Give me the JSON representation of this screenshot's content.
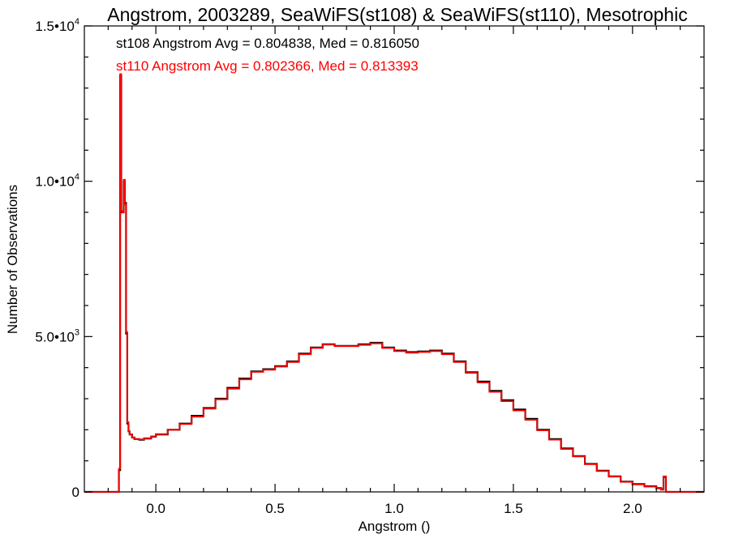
{
  "chart_data": {
    "type": "line",
    "title": "Angstrom, 2003289, SeaWiFS(st108) & SeaWiFS(st110), Mesotrophic",
    "xlabel": "Angstrom ()",
    "ylabel": "Number of Observations",
    "xlim": [
      -0.3,
      2.3
    ],
    "ylim": [
      0,
      15000
    ],
    "x_ticks": [
      {
        "value": 0.0,
        "label": "0.0"
      },
      {
        "value": 0.5,
        "label": "0.5"
      },
      {
        "value": 1.0,
        "label": "1.0"
      },
      {
        "value": 1.5,
        "label": "1.5"
      },
      {
        "value": 2.0,
        "label": "2.0"
      }
    ],
    "y_ticks": [
      {
        "value": 0,
        "label": "0",
        "exp": ""
      },
      {
        "value": 5000,
        "label": "5.0•10",
        "exp": "3"
      },
      {
        "value": 10000,
        "label": "1.0•10",
        "exp": "4"
      },
      {
        "value": 15000,
        "label": "1.5•10",
        "exp": "4"
      }
    ],
    "annotations": [
      {
        "text": "st108 Angstrom Avg = 0.804838, Med = 0.816050",
        "color": "#000000"
      },
      {
        "text": "st110 Angstrom Avg = 0.802366, Med = 0.813393",
        "color": "#ff0000"
      }
    ],
    "grid": false,
    "series": [
      {
        "color": "#000000",
        "x": [
          -0.3,
          -0.16,
          -0.155,
          -0.15,
          -0.145,
          -0.14,
          -0.135,
          -0.13,
          -0.125,
          -0.12,
          -0.115,
          -0.11,
          -0.1,
          -0.09,
          -0.07,
          -0.05,
          -0.02,
          0.0,
          0.05,
          0.1,
          0.15,
          0.2,
          0.25,
          0.3,
          0.35,
          0.4,
          0.45,
          0.5,
          0.55,
          0.6,
          0.65,
          0.7,
          0.75,
          0.8,
          0.85,
          0.9,
          0.95,
          1.0,
          1.05,
          1.1,
          1.15,
          1.2,
          1.25,
          1.3,
          1.35,
          1.4,
          1.45,
          1.5,
          1.55,
          1.6,
          1.65,
          1.7,
          1.75,
          1.8,
          1.85,
          1.9,
          1.95,
          2.0,
          2.05,
          2.1,
          2.12,
          2.13,
          2.14,
          2.16,
          2.3
        ],
        "y": [
          0,
          0,
          700,
          13400,
          9000,
          9000,
          10000,
          9300,
          5100,
          2200,
          1950,
          1850,
          1750,
          1700,
          1680,
          1720,
          1780,
          1850,
          2000,
          2200,
          2450,
          2700,
          3000,
          3350,
          3650,
          3880,
          3950,
          4050,
          4200,
          4450,
          4650,
          4750,
          4700,
          4700,
          4750,
          4800,
          4650,
          4550,
          4500,
          4520,
          4550,
          4450,
          4200,
          3850,
          3550,
          3250,
          2950,
          2650,
          2350,
          2000,
          1700,
          1400,
          1150,
          900,
          680,
          500,
          330,
          250,
          180,
          120,
          80,
          480,
          0,
          0,
          0
        ]
      },
      {
        "color": "#ff0000",
        "x": [
          -0.3,
          -0.16,
          -0.155,
          -0.15,
          -0.145,
          -0.14,
          -0.135,
          -0.13,
          -0.125,
          -0.12,
          -0.115,
          -0.11,
          -0.1,
          -0.09,
          -0.07,
          -0.05,
          -0.02,
          0.0,
          0.05,
          0.1,
          0.15,
          0.2,
          0.25,
          0.3,
          0.35,
          0.4,
          0.45,
          0.5,
          0.55,
          0.6,
          0.65,
          0.7,
          0.75,
          0.8,
          0.85,
          0.9,
          0.95,
          1.0,
          1.05,
          1.1,
          1.15,
          1.2,
          1.25,
          1.3,
          1.35,
          1.4,
          1.45,
          1.5,
          1.55,
          1.6,
          1.65,
          1.7,
          1.75,
          1.8,
          1.85,
          1.9,
          1.95,
          2.0,
          2.05,
          2.1,
          2.12,
          2.13,
          2.14,
          2.16,
          2.3
        ],
        "y": [
          0,
          0,
          750,
          13450,
          9050,
          9000,
          10050,
          9250,
          5150,
          2250,
          1950,
          1850,
          1750,
          1700,
          1690,
          1730,
          1790,
          1860,
          2000,
          2180,
          2420,
          2680,
          2980,
          3320,
          3620,
          3860,
          3930,
          4030,
          4180,
          4430,
          4630,
          4740,
          4690,
          4690,
          4730,
          4780,
          4630,
          4530,
          4480,
          4500,
          4530,
          4430,
          4180,
          3830,
          3520,
          3220,
          2920,
          2620,
          2320,
          1980,
          1680,
          1380,
          1140,
          890,
          670,
          490,
          320,
          240,
          170,
          110,
          70,
          500,
          0,
          0,
          0
        ]
      }
    ]
  }
}
